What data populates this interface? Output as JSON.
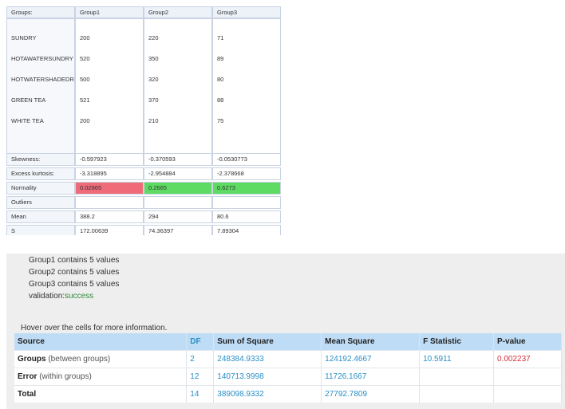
{
  "grid": {
    "header": {
      "label": "Groups:",
      "group1": "Group1",
      "group2": "Group2",
      "group3": "Group3"
    },
    "data": {
      "groups": [
        "SUNDRY",
        "HOTAWATERSUNDRY",
        "HOTWATERSHADEDRY",
        "GREEN TEA",
        "WHITE TEA"
      ],
      "group1": [
        "200",
        "520",
        "500",
        "521",
        "200"
      ],
      "group2": [
        "220",
        "350",
        "320",
        "370",
        "210"
      ],
      "group3": [
        "71",
        "89",
        "80",
        "88",
        "75"
      ]
    },
    "rows": [
      {
        "label": "Skewness:",
        "values": [
          "-0.597923",
          "-0.370593",
          "-0.0530773"
        ]
      },
      {
        "label": "Excess kurtosis:",
        "values": [
          "-3.318895",
          "-2.954884",
          "-2.378668"
        ]
      },
      {
        "label": "Normality",
        "values": [
          "0.02865",
          "0.2665",
          "0.6273"
        ]
      },
      {
        "label": "Outliers",
        "values": [
          "",
          "",
          ""
        ]
      },
      {
        "label": "Mean",
        "values": [
          "388.2",
          "294",
          "80.6"
        ]
      },
      {
        "label": "S",
        "values": [
          "172.00639",
          "74.36397",
          "7.89304"
        ]
      }
    ],
    "normality_colors": [
      "#ef6b7a",
      "#5ddb63",
      "#5ddb63"
    ]
  },
  "info": {
    "lines": [
      "Group1 contains 5 values",
      "Group2 contains 5 values",
      "Group3 contains 5 values"
    ],
    "validation_label": "validation:",
    "validation_value": "success",
    "hover_hint": "Hover over the cells for more information."
  },
  "anova": {
    "headers": [
      "Source",
      "DF",
      "Sum of Square",
      "Mean Square",
      "F Statistic",
      "P-value"
    ],
    "rows": [
      {
        "source": "Groups",
        "qualifier": " (between groups)",
        "df": "2",
        "ss": "248384.9333",
        "ms": "124192.4667",
        "f": "10.5911",
        "p": "0.002237"
      },
      {
        "source": "Error",
        "qualifier": " (within groups)",
        "df": "12",
        "ss": "140713.9998",
        "ms": "11726.1667",
        "f": "",
        "p": ""
      },
      {
        "source": "Total",
        "qualifier": "",
        "df": "14",
        "ss": "389098.9332",
        "ms": "27792.7809",
        "f": "",
        "p": ""
      }
    ]
  }
}
